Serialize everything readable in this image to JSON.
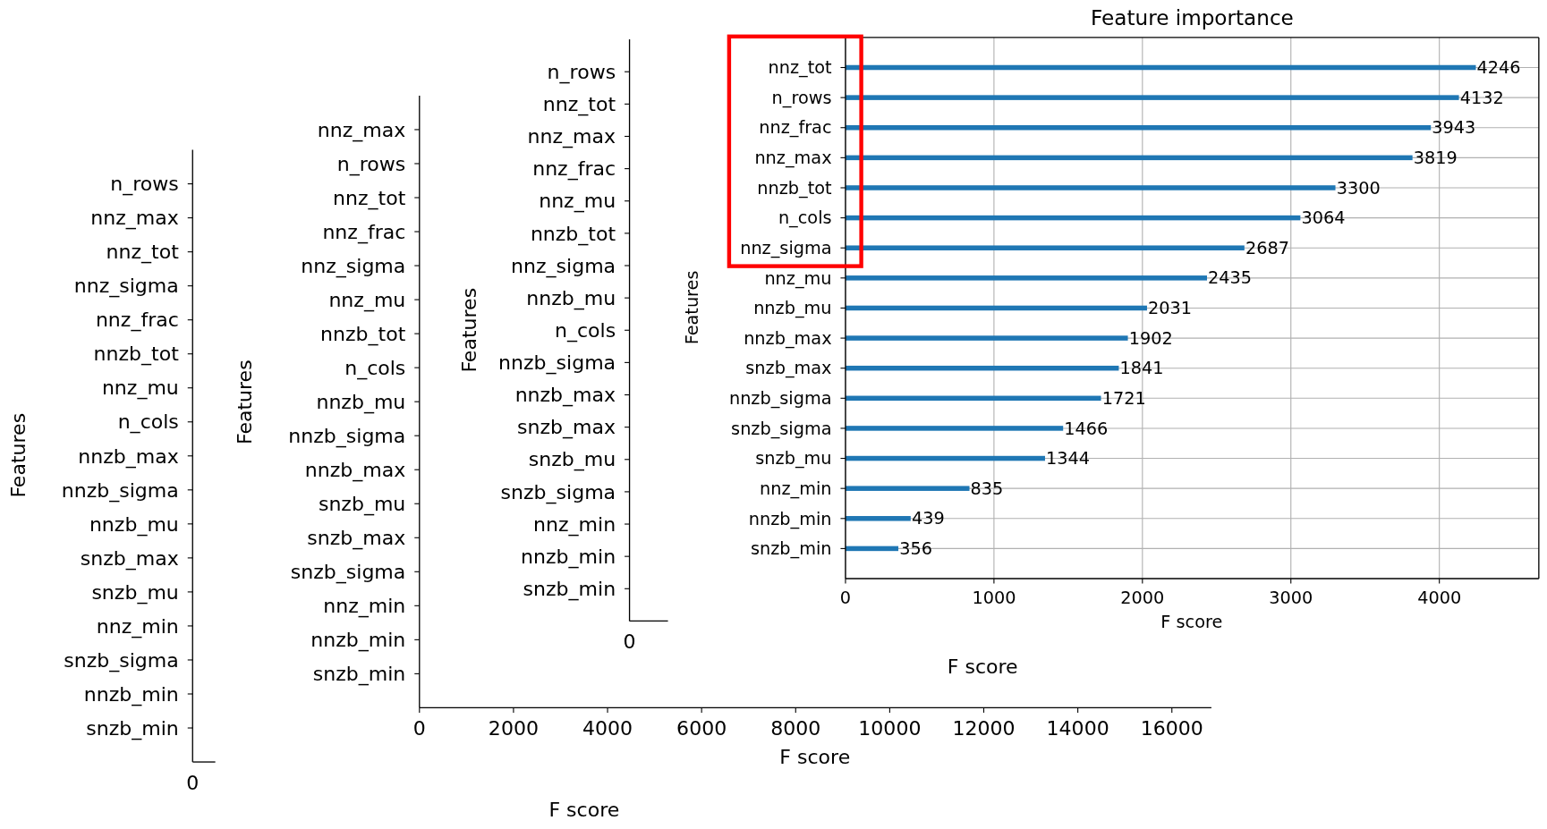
{
  "chart_data": [
    {
      "type": "other",
      "xlabel": "F score",
      "ylabel": "Features",
      "categories": [
        "n_rows",
        "nnz_max",
        "nnz_tot",
        "nnz_sigma",
        "nnz_frac",
        "nnzb_tot",
        "nnz_mu",
        "n_cols",
        "nnzb_max",
        "nnzb_sigma",
        "nnzb_mu",
        "snzb_max",
        "snzb_mu",
        "nnz_min",
        "snzb_sigma",
        "nnzb_min",
        "snzb_min"
      ],
      "annotations": [
        "0"
      ]
    },
    {
      "type": "bar",
      "orientation": "horizontal",
      "xlabel": "F score",
      "ylabel": "Features",
      "categories": [
        "nnz_max",
        "n_rows",
        "nnz_tot",
        "nnz_frac",
        "nnz_sigma",
        "nnz_mu",
        "nnzb_tot",
        "n_cols",
        "nnzb_mu",
        "nnzb_sigma",
        "nnzb_max",
        "snzb_mu",
        "snzb_max",
        "snzb_sigma",
        "nnz_min",
        "nnzb_min",
        "snzb_min"
      ],
      "values": [
        null,
        null,
        null,
        null,
        null,
        null,
        null,
        null,
        null,
        null,
        null,
        null,
        null,
        null,
        null,
        null,
        null
      ],
      "xlim": [
        0,
        16840
      ],
      "xticks": [
        0,
        2000,
        4000,
        6000,
        8000,
        10000,
        12000,
        14000,
        16000
      ],
      "grid": false
    },
    {
      "type": "other",
      "xlabel": "F score",
      "ylabel": "Features",
      "categories": [
        "n_rows",
        "nnz_tot",
        "nnz_max",
        "nnz_frac",
        "nnz_mu",
        "nnzb_tot",
        "nnz_sigma",
        "nnzb_mu",
        "n_cols",
        "nnzb_sigma",
        "nnzb_max",
        "snzb_max",
        "snzb_mu",
        "snzb_sigma",
        "nnz_min",
        "nnzb_min",
        "snzb_min"
      ],
      "annotations": [
        "0"
      ]
    },
    {
      "type": "bar",
      "orientation": "horizontal",
      "title": "Feature importance",
      "xlabel": "F score",
      "ylabel": "Features",
      "categories": [
        "nnz_tot",
        "n_rows",
        "nnz_frac",
        "nnz_max",
        "nnzb_tot",
        "n_cols",
        "nnz_sigma",
        "nnz_mu",
        "nnzb_mu",
        "nnzb_max",
        "snzb_max",
        "nnzb_sigma",
        "snzb_sigma",
        "snzb_mu",
        "nnz_min",
        "nnzb_min",
        "snzb_min"
      ],
      "values": [
        4246,
        4132,
        3943,
        3819,
        3300,
        3064,
        2687,
        2435,
        2031,
        1902,
        1841,
        1721,
        1466,
        1344,
        835,
        439,
        356
      ],
      "color": "#1f77b4",
      "xlim": [
        0,
        4670
      ],
      "xticks": [
        0,
        1000,
        2000,
        3000,
        4000
      ],
      "grid": true,
      "data_labels": true
    }
  ]
}
